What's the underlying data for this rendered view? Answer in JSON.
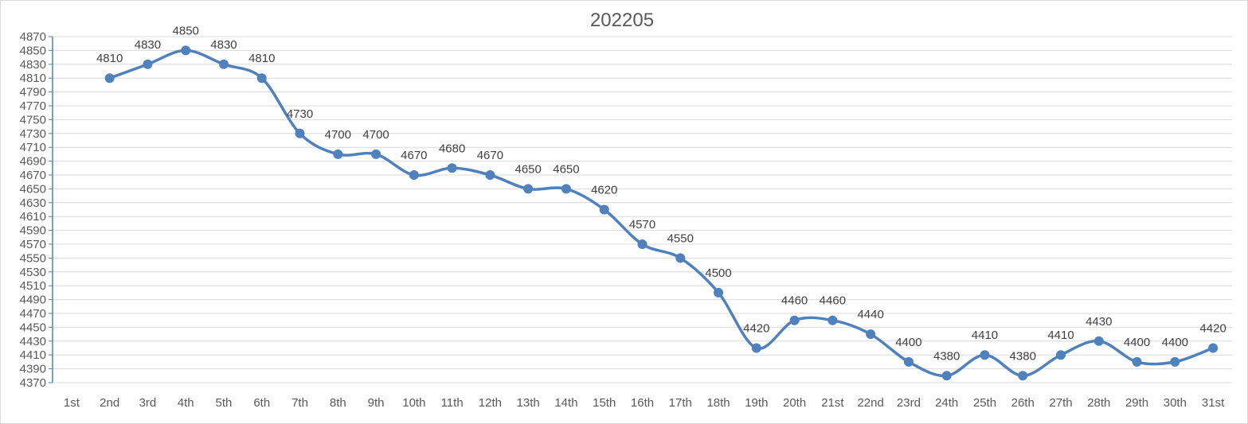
{
  "chart_data": {
    "type": "line",
    "title": "202205",
    "xlabel": "",
    "ylabel": "",
    "categories": [
      "1st",
      "2nd",
      "3rd",
      "4th",
      "5th",
      "6th",
      "7th",
      "8th",
      "9th",
      "10th",
      "11th",
      "12th",
      "13th",
      "14th",
      "15th",
      "16th",
      "17th",
      "18th",
      "19th",
      "20th",
      "21st",
      "22nd",
      "23rd",
      "24th",
      "25th",
      "26th",
      "27th",
      "28th",
      "29th",
      "30th",
      "31st"
    ],
    "series": [
      {
        "values": [
          null,
          4810,
          4830,
          4850,
          4830,
          4810,
          4730,
          4700,
          4700,
          4670,
          4680,
          4670,
          4650,
          4650,
          4620,
          4570,
          4550,
          4500,
          4420,
          4460,
          4460,
          4440,
          4400,
          4380,
          4410,
          4380,
          4410,
          4430,
          4400,
          4400,
          4420
        ],
        "color": "#4f81bd"
      }
    ],
    "ylim": [
      4370,
      4870
    ],
    "ytick_step": 20,
    "grid": true,
    "legend": "none",
    "smooth": true,
    "data_labels": true
  }
}
